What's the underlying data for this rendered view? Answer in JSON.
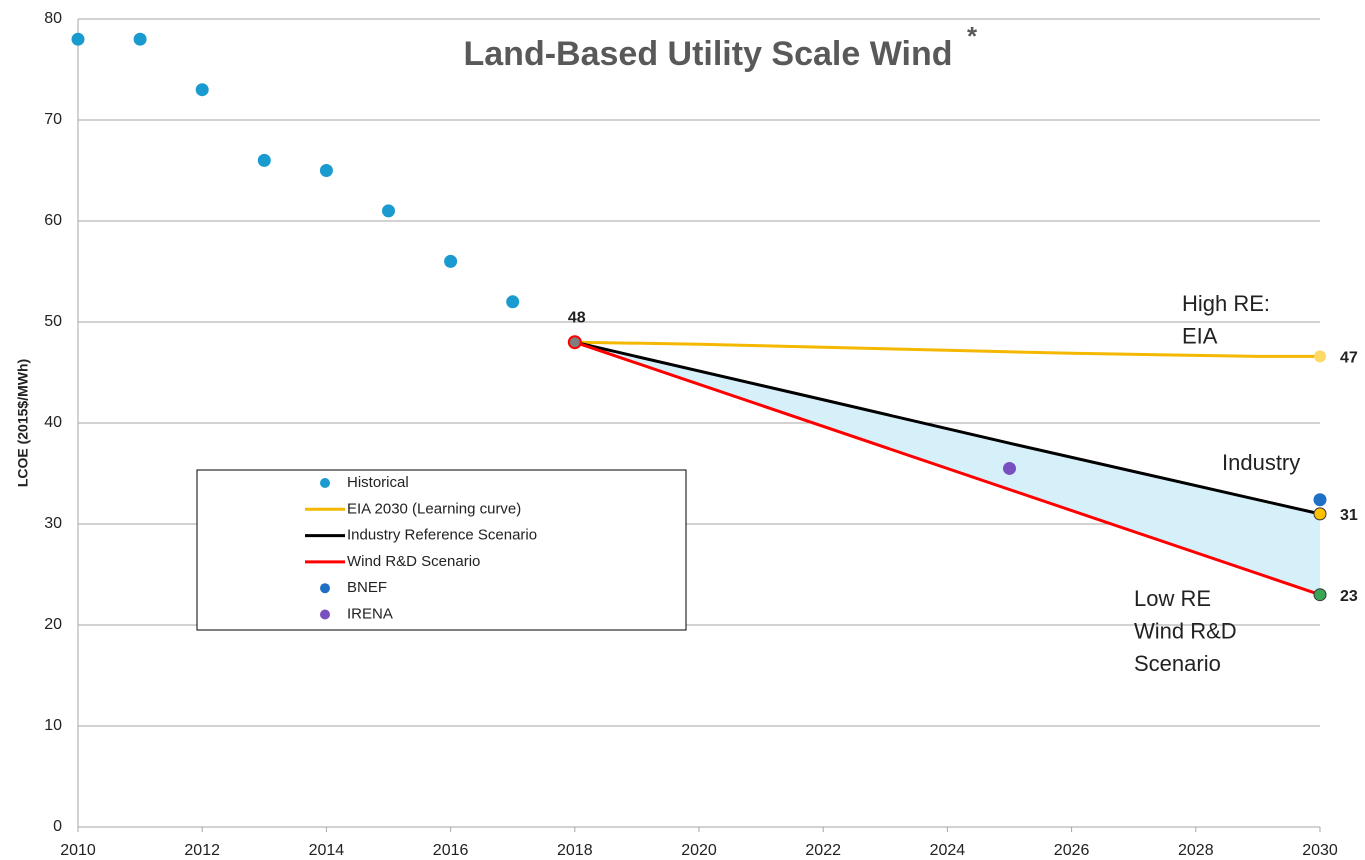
{
  "chart_data": {
    "type": "line",
    "title": "Land-Based Utility Scale Wind",
    "title_mark": "*",
    "y_label": "LCOE (2015$/MWh)",
    "xlim": [
      2010,
      2030
    ],
    "xticks": [
      2010,
      2012,
      2014,
      2016,
      2018,
      2020,
      2022,
      2024,
      2026,
      2028,
      2030
    ],
    "ylim": [
      0,
      80
    ],
    "yticks": [
      0,
      10,
      20,
      30,
      40,
      50,
      60,
      70,
      80
    ],
    "grid": true,
    "series": [
      {
        "name": "Historical",
        "kind": "scatter",
        "color": "#1a9bd0",
        "x": [
          2010,
          2011,
          2012,
          2013,
          2014,
          2015,
          2016,
          2017
        ],
        "values": [
          78,
          78,
          73,
          66,
          65,
          61,
          56,
          52
        ]
      },
      {
        "name": "EIA 2030 (Learning curve)",
        "kind": "line",
        "color": "#f5b800",
        "marker_color": "#ffd966",
        "x": [
          2018,
          2020,
          2022,
          2024,
          2026,
          2028,
          2029,
          2030
        ],
        "values": [
          48,
          47.8,
          47.5,
          47.2,
          46.9,
          46.7,
          46.6,
          46.6
        ],
        "value_labels": [
          null,
          null,
          null,
          null,
          null,
          null,
          null,
          "47"
        ]
      },
      {
        "name": "Industry Reference Scenario",
        "kind": "line",
        "color": "#000000",
        "marker_color": "#ffc000",
        "x": [
          2018,
          2022,
          2025,
          2030
        ],
        "values": [
          48,
          42.3,
          38,
          31
        ],
        "value_labels": [
          null,
          null,
          null,
          "31"
        ]
      },
      {
        "name": "Wind R&D Scenario",
        "kind": "line",
        "color": "#ff0000",
        "marker_color": "#3aa655",
        "x": [
          2018,
          2030
        ],
        "values": [
          48,
          23
        ],
        "value_labels": [
          "48",
          "23"
        ]
      },
      {
        "name": "BNEF",
        "kind": "scatter",
        "color": "#1f6fc4",
        "x": [
          2030
        ],
        "values": [
          32.4
        ]
      },
      {
        "name": "IRENA",
        "kind": "scatter",
        "color": "#7a4fbf",
        "x": [
          2025
        ],
        "values": [
          35.5
        ]
      }
    ],
    "band": {
      "between": [
        2,
        3
      ],
      "color": "#d6f0fa"
    },
    "annotations": [
      {
        "lines": [
          "High RE:",
          "EIA"
        ]
      },
      {
        "lines": [
          "Industry"
        ]
      },
      {
        "lines": [
          "Low RE",
          "Wind R&D",
          "Scenario"
        ]
      }
    ]
  }
}
